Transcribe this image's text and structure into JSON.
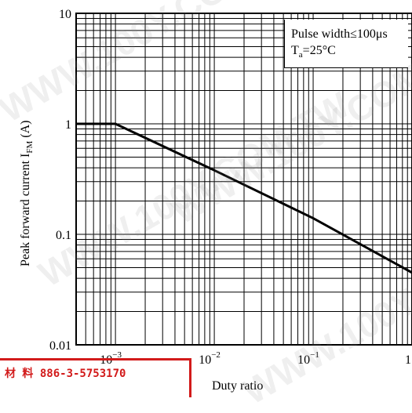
{
  "chart_data": {
    "type": "line",
    "title": "",
    "xlabel": "Duty ratio",
    "ylabel_main": "Peak forward current I",
    "ylabel_sub": "FM",
    "ylabel_unit": " (A)",
    "x_scale": "log",
    "y_scale": "log",
    "xlim": [
      0.0004,
      1
    ],
    "ylim": [
      0.01,
      10
    ],
    "grid": true,
    "x_ticks": [
      {
        "value": 0.001,
        "base": "10",
        "exp": "−3"
      },
      {
        "value": 0.01,
        "base": "10",
        "exp": "−2"
      },
      {
        "value": 0.1,
        "base": "10",
        "exp": "−1"
      },
      {
        "value": 1,
        "base": "1",
        "exp": ""
      }
    ],
    "y_ticks": [
      {
        "value": 10,
        "label": "10"
      },
      {
        "value": 1,
        "label": "1"
      },
      {
        "value": 0.1,
        "label": "0.1"
      },
      {
        "value": 0.01,
        "label": "0.01"
      }
    ],
    "series": [
      {
        "x": [
          0.0004,
          0.001,
          0.01,
          0.1,
          1
        ],
        "y": [
          1,
          1,
          0.38,
          0.14,
          0.045
        ]
      }
    ],
    "annotation": {
      "line1": "Pulse width≤100μs",
      "line2_main": "T",
      "line2_sub": "a",
      "line2_rest": "=25°C"
    },
    "colors": {
      "line": "#000000",
      "grid": "#000000",
      "stamp": "#d21a1a"
    }
  },
  "stamp_text": "材 料 886-3-5753170",
  "watermark": "WWW.100Y.COM.TW"
}
